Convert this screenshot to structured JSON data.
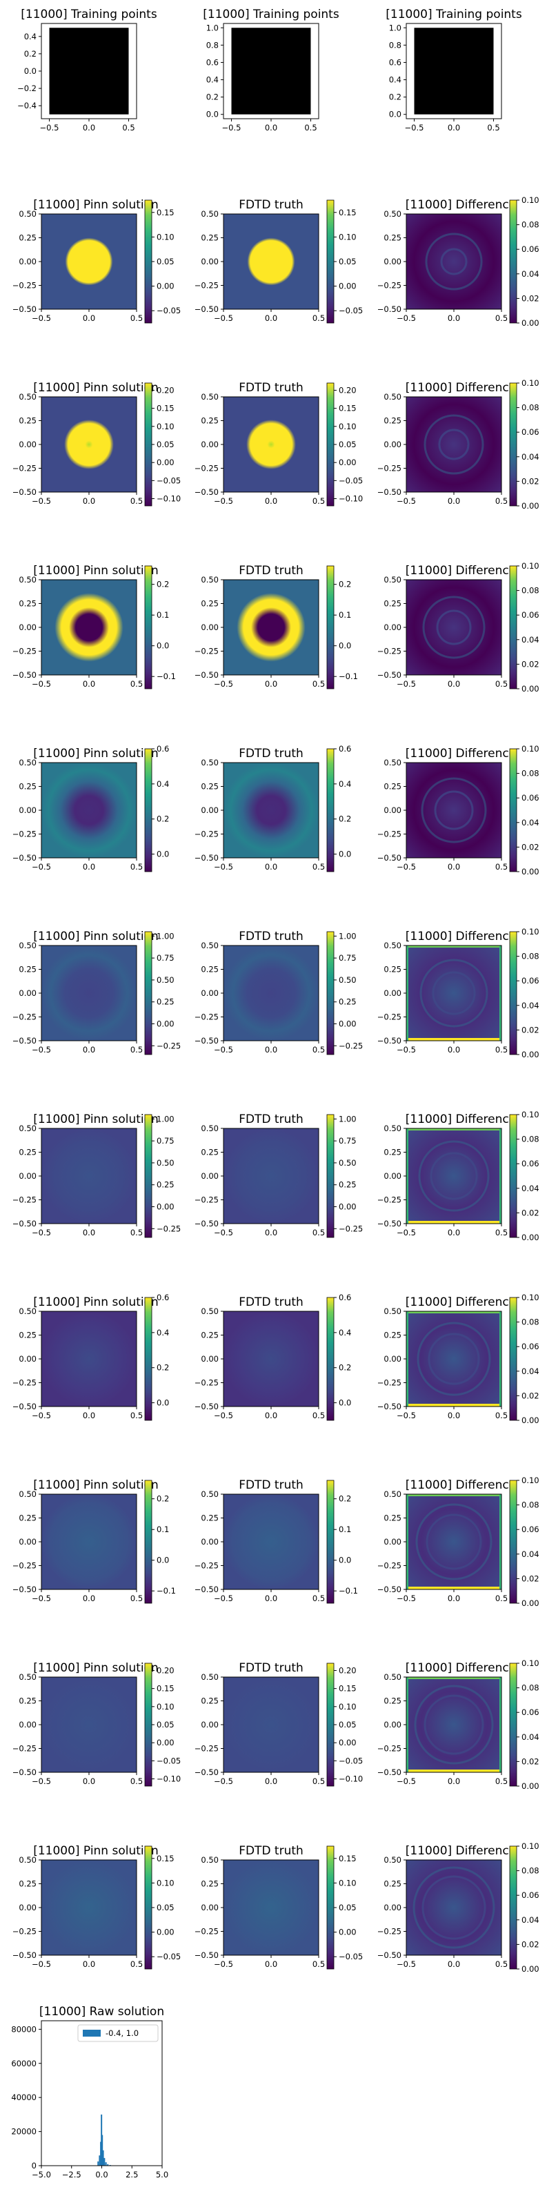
{
  "figure": {
    "training_title": "[11000] Training points",
    "pinn_title": "[11000] Pinn solution",
    "fdtd_title": "FDTD truth",
    "diff_title": "[11000] Difference",
    "raw_title": "[11000] Raw solution"
  },
  "chart_data": [
    {
      "type": "scatter",
      "panel": "training-points-1",
      "title": "[11000] Training points",
      "xlim": [
        -0.6,
        0.6
      ],
      "ylim": [
        -0.55,
        0.55
      ],
      "xticks": [
        "−0.5",
        "0.0",
        "0.5"
      ],
      "yticks": [
        "−0.4",
        "−0.2",
        "0.0",
        "0.2",
        "0.4"
      ],
      "fill": "#000000"
    },
    {
      "type": "scatter",
      "panel": "training-points-2",
      "title": "[11000] Training points",
      "xlim": [
        -0.6,
        0.6
      ],
      "ylim": [
        -0.05,
        1.05
      ],
      "xticks": [
        "−0.5",
        "0.0",
        "0.5"
      ],
      "yticks": [
        "0.0",
        "0.2",
        "0.4",
        "0.6",
        "0.8",
        "1.0"
      ],
      "fill": "#000000"
    },
    {
      "type": "scatter",
      "panel": "training-points-3",
      "title": "[11000] Training points",
      "xlim": [
        -0.6,
        0.6
      ],
      "ylim": [
        -0.05,
        1.05
      ],
      "xticks": [
        "−0.5",
        "0.0",
        "0.5"
      ],
      "yticks": [
        "0.0",
        "0.2",
        "0.4",
        "0.6",
        "0.8",
        "1.0"
      ],
      "fill": "#000000"
    },
    {
      "type": "heatmap",
      "panel_rows": [
        {
          "cbar_pinn": [
            "−0.05",
            "0.00",
            "0.05",
            "0.10",
            "0.15"
          ],
          "cbar_range": [
            -0.075,
            0.175
          ]
        },
        {
          "cbar_pinn": [
            "−0.10",
            "−0.05",
            "0.00",
            "0.05",
            "0.10",
            "0.15",
            "0.20"
          ],
          "cbar_range": [
            -0.12,
            0.22
          ]
        },
        {
          "cbar_pinn": [
            "−0.1",
            "0.0",
            "0.1",
            "0.2"
          ],
          "cbar_range": [
            -0.14,
            0.26
          ]
        },
        {
          "cbar_pinn": [
            "0.0",
            "0.2",
            "0.4",
            "0.6"
          ],
          "cbar_range": [
            -0.1,
            0.6
          ]
        },
        {
          "cbar_pinn": [
            "−0.25",
            "0.00",
            "0.25",
            "0.50",
            "0.75",
            "1.00"
          ],
          "cbar_range": [
            -0.35,
            1.05
          ]
        },
        {
          "cbar_pinn": [
            "−0.25",
            "0.00",
            "0.25",
            "0.50",
            "0.75",
            "1.00"
          ],
          "cbar_range": [
            -0.35,
            1.05
          ]
        },
        {
          "cbar_pinn": [
            "0.0",
            "0.2",
            "0.4",
            "0.6"
          ],
          "cbar_range": [
            -0.1,
            0.6
          ]
        },
        {
          "cbar_pinn": [
            "−0.1",
            "0.0",
            "0.1",
            "0.2"
          ],
          "cbar_range": [
            -0.14,
            0.26
          ]
        },
        {
          "cbar_pinn": [
            "−0.10",
            "−0.05",
            "0.00",
            "0.05",
            "0.10",
            "0.15",
            "0.20"
          ],
          "cbar_range": [
            -0.12,
            0.22
          ]
        },
        {
          "cbar_pinn": [
            "−0.05",
            "0.00",
            "0.05",
            "0.10",
            "0.15"
          ],
          "cbar_range": [
            -0.075,
            0.175
          ]
        }
      ],
      "xticks": [
        "−0.5",
        "0.0",
        "0.5"
      ],
      "yticks": [
        "−0.50",
        "−0.25",
        "0.00",
        "0.25",
        "0.50"
      ],
      "xlim": [
        -0.5,
        0.5
      ],
      "ylim": [
        -0.5,
        0.5
      ],
      "diff_cbar": [
        "0.00",
        "0.02",
        "0.04",
        "0.06",
        "0.08",
        "0.10"
      ],
      "diff_range": [
        0,
        0.1
      ],
      "colormap": "viridis"
    },
    {
      "type": "bar",
      "panel": "raw-solution-histogram",
      "title": "[11000] Raw solution",
      "xlim": [
        -5,
        5
      ],
      "ylim": [
        0,
        85000
      ],
      "xticks": [
        "−5.0",
        "−2.5",
        "0.0",
        "2.5",
        "5.0"
      ],
      "yticks": [
        "0",
        "20000",
        "40000",
        "60000",
        "80000"
      ],
      "legend": "-0.4, 1.0",
      "legend_placement": "top-right",
      "bars": [
        {
          "x": -0.3,
          "value": 2500
        },
        {
          "x": -0.18,
          "value": 6000
        },
        {
          "x": -0.08,
          "value": 14000
        },
        {
          "x": -0.02,
          "value": 30000
        },
        {
          "x": 0.04,
          "value": 18000
        },
        {
          "x": 0.12,
          "value": 9000
        },
        {
          "x": 0.22,
          "value": 4500
        },
        {
          "x": 0.35,
          "value": 2000
        },
        {
          "x": 0.5,
          "value": 900
        },
        {
          "x": 0.7,
          "value": 400
        }
      ],
      "color": "#1f77b4"
    }
  ]
}
